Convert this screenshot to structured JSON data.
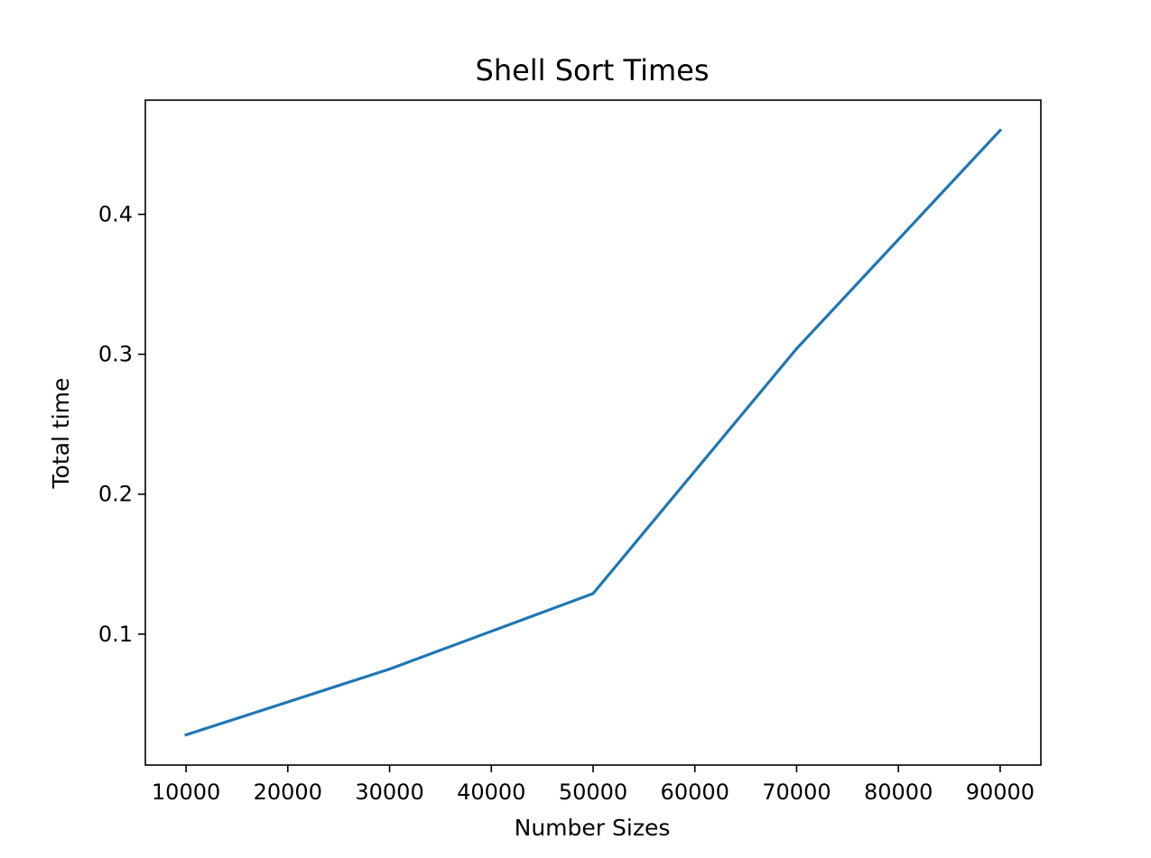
{
  "chart_data": {
    "type": "line",
    "title": "Shell Sort Times",
    "xlabel": "Number Sizes",
    "ylabel": "Total time",
    "x": [
      10000,
      30000,
      50000,
      70000,
      90000
    ],
    "series": [
      {
        "values": [
          0.028,
          0.075,
          0.129,
          0.304,
          0.46
        ],
        "color": "#1f77b4"
      }
    ],
    "xlim": [
      6000,
      94000
    ],
    "ylim": [
      0.0064,
      0.4816
    ],
    "xticks": [
      10000,
      20000,
      30000,
      40000,
      50000,
      60000,
      70000,
      80000,
      90000
    ],
    "yticks": [
      0.1,
      0.2,
      0.3,
      0.4
    ],
    "ytick_labels": [
      "0.1",
      "0.2",
      "0.3",
      "0.4"
    ],
    "grid": false,
    "legend": false
  }
}
